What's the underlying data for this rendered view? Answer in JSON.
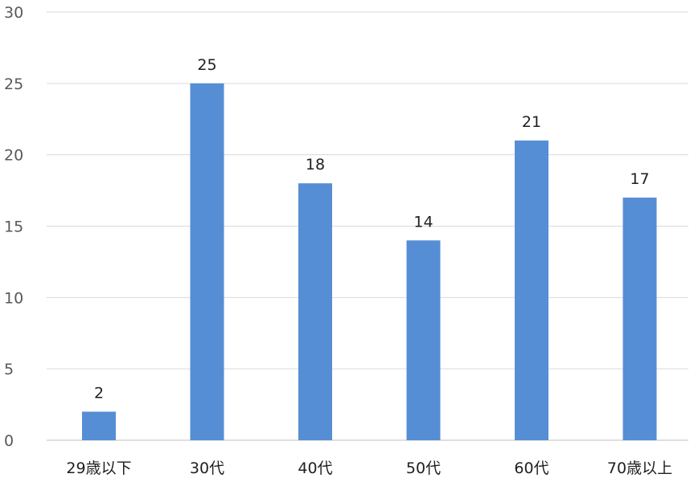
{
  "chart_data": {
    "type": "bar",
    "categories": [
      "29歳以下",
      "30代",
      "40代",
      "50代",
      "60代",
      "70歳以上"
    ],
    "values": [
      2,
      25,
      18,
      14,
      21,
      17
    ],
    "y_ticks": [
      "0",
      "5",
      "10",
      "15",
      "20",
      "25",
      "30"
    ],
    "ylim": [
      0,
      30
    ],
    "grid": true,
    "legend": "none",
    "data_labels": true,
    "title": "",
    "xlabel": "",
    "ylabel": "",
    "bar_color": "#558ed5"
  }
}
